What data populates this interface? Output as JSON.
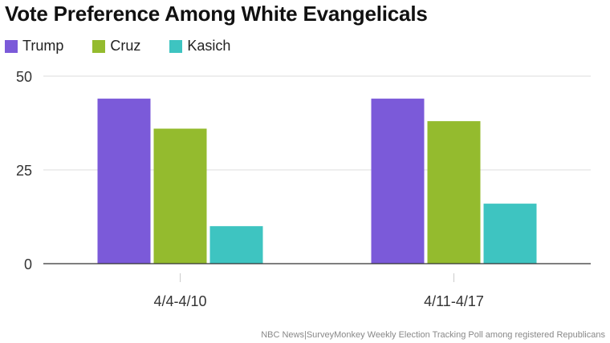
{
  "chart_data": {
    "type": "bar",
    "title": "Vote Preference Among White Evangelicals",
    "categories": [
      "4/4-4/10",
      "4/11-4/17"
    ],
    "series": [
      {
        "name": "Trump",
        "values": [
          44,
          44
        ],
        "color": "#7b5ad9"
      },
      {
        "name": "Cruz",
        "values": [
          36,
          38
        ],
        "color": "#94bb2e"
      },
      {
        "name": "Kasich",
        "values": [
          10,
          16
        ],
        "color": "#3ec4c1"
      }
    ],
    "ylim": [
      0,
      50
    ],
    "yticks": [
      0,
      25,
      50
    ],
    "xlabel": "",
    "ylabel": "",
    "grid": true,
    "legend_position": "top-left"
  },
  "source": "NBC News|SurveyMonkey Weekly Election Tracking Poll among registered Republicans"
}
